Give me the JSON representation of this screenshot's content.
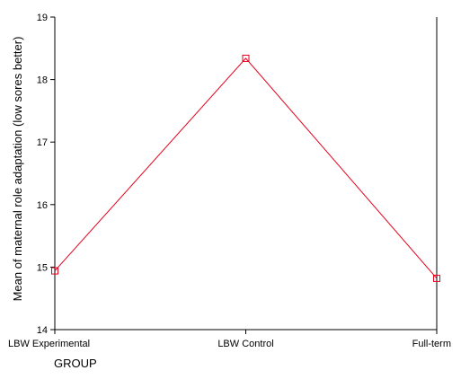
{
  "chart_data": {
    "type": "line",
    "title": "",
    "xlabel": "GROUP",
    "ylabel": "Mean of maternal role adaptation (low sores better)",
    "categories": [
      "LBW Experimental",
      "LBW Control",
      "Full-term"
    ],
    "series": [
      {
        "values": [
          14.94,
          18.34,
          14.82
        ],
        "color": "#e8001c"
      }
    ],
    "ylim": [
      14,
      19
    ],
    "yticks": [
      14,
      15,
      16,
      17,
      18,
      19
    ],
    "grid": false,
    "legend": "none",
    "marker": "open-square"
  }
}
